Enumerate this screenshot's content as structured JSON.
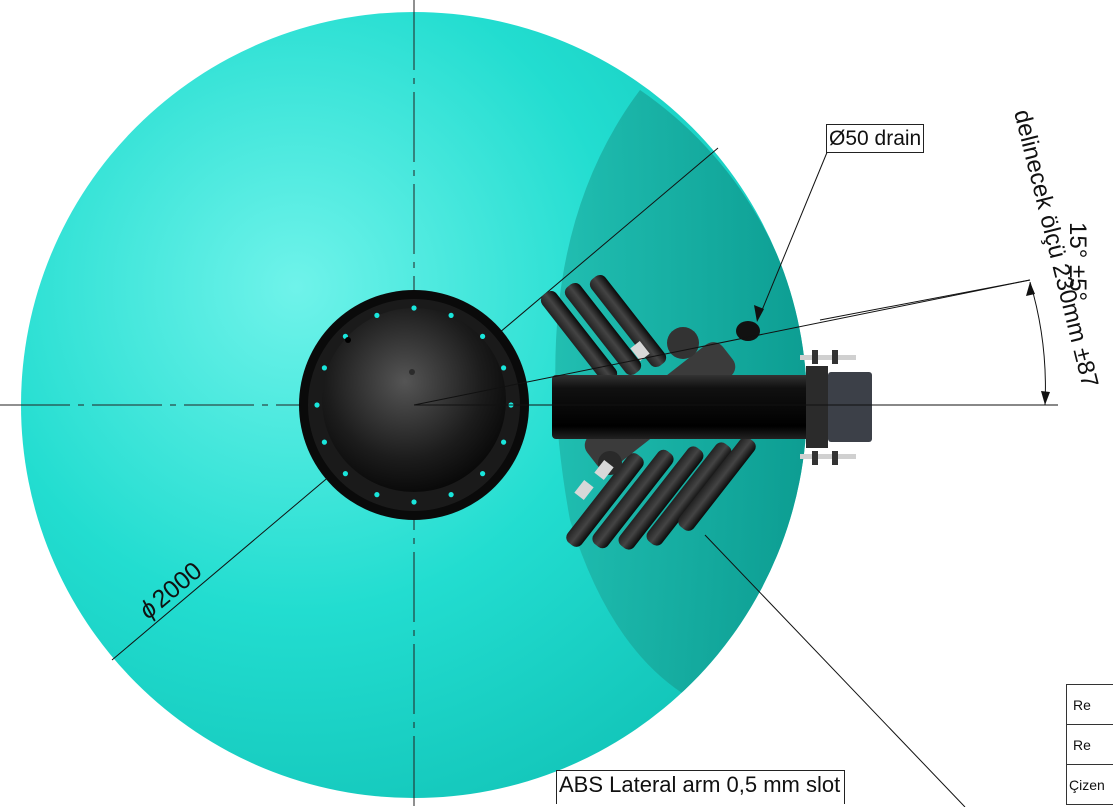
{
  "callouts": {
    "drain": "Ø50 drain",
    "lateral_arm": "ABS Lateral arm 0,5 mm slot"
  },
  "dimensions": {
    "diameter": "2000",
    "angle": "15° ±5°",
    "drill_distance": "delinecek ölçü 230mm ±87"
  },
  "title_block": {
    "rows": [
      "Re",
      "Re",
      "Çizen"
    ]
  },
  "colors": {
    "vessel": "#1fe0d3",
    "vessel_shadow": "#0aa89c",
    "flange": "#151515",
    "bolt": "#19e6dc",
    "pipe": "#050505"
  }
}
